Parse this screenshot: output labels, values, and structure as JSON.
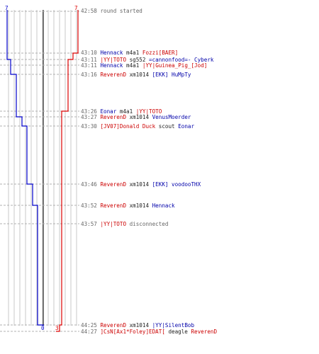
{
  "scoreboard": {
    "blue_color": "#0000cc",
    "red_color": "#dd0000",
    "blue_start": "7",
    "red_start": "7",
    "blue_end": "0",
    "red_end": "3"
  },
  "events": [
    {
      "time": "42:58",
      "kind": "status",
      "text": "round started"
    },
    {
      "time": "43:10",
      "kind": "kill",
      "killer": "Hennack",
      "killer_team": "blue",
      "weapon": "m4a1",
      "victim": "Fozzi[BAER]",
      "victim_team": "red"
    },
    {
      "time": "43:11",
      "kind": "kill",
      "killer": "|YY|TOTO",
      "killer_team": "red",
      "weapon": "sg552",
      "victim": "=cannonfood=- Cyberk",
      "victim_team": "blue"
    },
    {
      "time": "43:11",
      "kind": "kill",
      "killer": "Hennack",
      "killer_team": "blue",
      "weapon": "m4a1",
      "victim": "|YY|Guinea_Pig_[Jod]",
      "victim_team": "red"
    },
    {
      "time": "43:16",
      "kind": "kill",
      "killer": "ReverenD",
      "killer_team": "red",
      "weapon": "xm1014",
      "victim": "[EKK] HuMpTy",
      "victim_team": "blue"
    },
    {
      "time": "43:26",
      "kind": "kill",
      "killer": "Eonar",
      "killer_team": "blue",
      "weapon": "m4a1",
      "victim": "|YY|TOTO",
      "victim_team": "red"
    },
    {
      "time": "43:27",
      "kind": "kill",
      "killer": "ReverenD",
      "killer_team": "red",
      "weapon": "xm1014",
      "victim": "VenusMoerder",
      "victim_team": "blue"
    },
    {
      "time": "43:30",
      "kind": "kill",
      "killer": "[JV07]Donald Duck",
      "killer_team": "red",
      "weapon": "scout",
      "victim": "Eonar",
      "victim_team": "blue"
    },
    {
      "time": "43:46",
      "kind": "kill",
      "killer": "ReverenD",
      "killer_team": "red",
      "weapon": "xm1014",
      "victim": "[EKK] voodooTHX",
      "victim_team": "blue"
    },
    {
      "time": "43:52",
      "kind": "kill",
      "killer": "ReverenD",
      "killer_team": "red",
      "weapon": "xm1014",
      "victim": "Hennack",
      "victim_team": "blue"
    },
    {
      "time": "43:57",
      "kind": "status_player",
      "player": "|YY|TOTO",
      "player_team": "red",
      "text": "disconnected"
    },
    {
      "time": "44:25",
      "kind": "kill",
      "killer": "ReverenD",
      "killer_team": "red",
      "weapon": "xm1014",
      "victim": "|YY|SilentBob",
      "victim_team": "blue"
    },
    {
      "time": "44:27",
      "kind": "kill",
      "killer": "]CsN[Ax1*Foley]EDAT[",
      "killer_team": "red",
      "weapon": "deagle",
      "victim": "ReverenD",
      "victim_team": "red"
    }
  ]
}
